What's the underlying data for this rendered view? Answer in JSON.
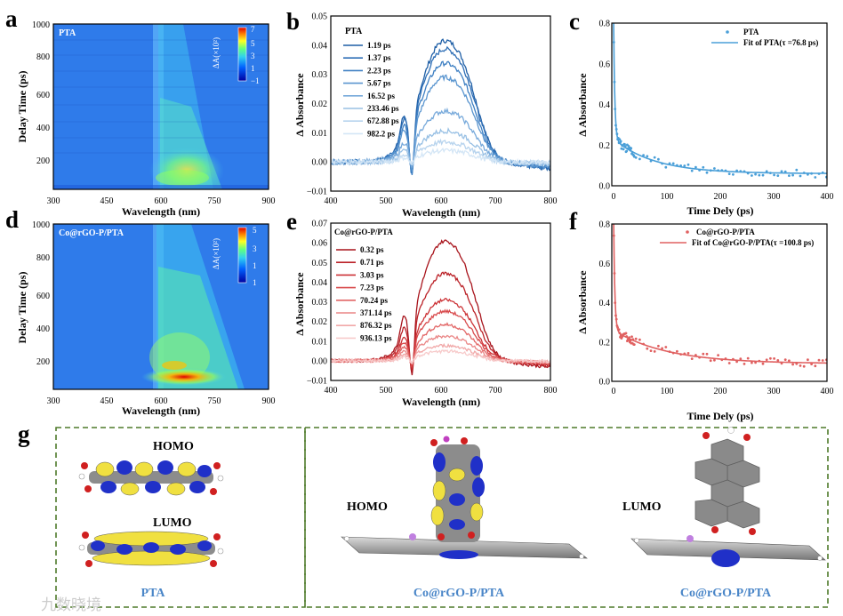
{
  "panel_letters": [
    "a",
    "b",
    "c",
    "d",
    "e",
    "f",
    "g"
  ],
  "colors": {
    "blue_dark": "#1f5fa6",
    "blue_fit": "#4a9fd8",
    "red_dark": "#b01a20",
    "red_fit": "#e06060",
    "dash_border": "#4e7a2a",
    "jet_bg": "#2a72e6"
  },
  "chart_data": [
    {
      "id": "a",
      "type": "heatmap",
      "label": "PTA",
      "xlabel": "Wavelength (nm)",
      "ylabel": "Delay Time (ps)",
      "xlim": [
        300,
        900
      ],
      "ylim": [
        0,
        1000
      ],
      "xticks": [
        "300",
        "450",
        "600",
        "750",
        "900"
      ],
      "yticks": [
        "200",
        "400",
        "600",
        "800",
        "1000"
      ],
      "yticks_num": [
        200,
        400,
        600,
        800,
        1000
      ],
      "colorbar_title": "ΔA(×10²)",
      "colorbar_ticks": [
        "7",
        "5",
        "3",
        "1",
        "−1"
      ]
    },
    {
      "id": "b",
      "type": "line",
      "label": "PTA",
      "xlabel": "Wavelength (nm)",
      "ylabel": "Δ Absorbance",
      "xlim": [
        400,
        800
      ],
      "ylim": [
        -0.01,
        0.05
      ],
      "xticks": [
        "400",
        "500",
        "600",
        "700",
        "800"
      ],
      "yticks": [
        "−0.01",
        "0.00",
        "0.01",
        "0.02",
        "0.03",
        "0.04",
        "0.05"
      ],
      "yticks_num": [
        -0.01,
        0,
        0.01,
        0.02,
        0.03,
        0.04,
        0.05
      ],
      "series_names": [
        "1.19 ps",
        "1.37 ps",
        "2.23 ps",
        "5.67 ps",
        "16.52 ps",
        "233.46 ps",
        "672.88 ps",
        "982.2 ps"
      ],
      "series_colors": [
        "#1f5fa6",
        "#2f6fb6",
        "#3f80c3",
        "#5a95cf",
        "#78aadb",
        "#98c0e4",
        "#b8d4ee",
        "#d4e6f6"
      ],
      "peaks": [
        0.043,
        0.04,
        0.035,
        0.03,
        0.018,
        0.011,
        0.007,
        0.004
      ]
    },
    {
      "id": "c",
      "type": "scatter",
      "label": "PTA",
      "fit_label": "Fit of  PTA(τ =76.8 ps)",
      "xlabel": "Time Dely (ps)",
      "ylabel": "Δ Absorbance",
      "xlim": [
        0,
        400
      ],
      "ylim": [
        0,
        0.8
      ],
      "xticks": [
        "0",
        "100",
        "200",
        "300",
        "400"
      ],
      "yticks": [
        "0.0",
        "0.2",
        "0.4",
        "0.6",
        "0.8"
      ],
      "yticks_num": [
        0,
        0.2,
        0.4,
        0.6,
        0.8
      ],
      "tau": 76.8,
      "plateau": 0.06
    },
    {
      "id": "d",
      "type": "heatmap",
      "label": "Co@rGO-P/PTA",
      "xlabel": "Wavelength (nm)",
      "ylabel": "Delay Time (ps)",
      "xlim": [
        300,
        900
      ],
      "ylim": [
        0,
        1000
      ],
      "xticks": [
        "300",
        "450",
        "600",
        "750",
        "900"
      ],
      "yticks": [
        "200",
        "400",
        "600",
        "800",
        "1000"
      ],
      "yticks_num": [
        200,
        400,
        600,
        800,
        1000
      ],
      "colorbar_title": "ΔA(×10²)",
      "colorbar_ticks": [
        "5",
        "3",
        "1",
        "1"
      ]
    },
    {
      "id": "e",
      "type": "line",
      "label": "Co@rGO-P/PTA",
      "xlabel": "Wavelength (nm)",
      "ylabel": "Δ Absorbance",
      "xlim": [
        400,
        800
      ],
      "ylim": [
        -0.01,
        0.07
      ],
      "xticks": [
        "400",
        "500",
        "600",
        "700",
        "800"
      ],
      "yticks": [
        "−0.01",
        "0.00",
        "0.01",
        "0.02",
        "0.03",
        "0.04",
        "0.05",
        "0.06",
        "0.07"
      ],
      "yticks_num": [
        -0.01,
        0,
        0.01,
        0.02,
        0.03,
        0.04,
        0.05,
        0.06,
        0.07
      ],
      "series_names": [
        "0.32 ps",
        "0.71 ps",
        "3.03 ps",
        "7.23 ps",
        "70.24 ps",
        "371.14 ps",
        "876.32 ps",
        "936.13 ps"
      ],
      "series_colors": [
        "#a8141c",
        "#bb2228",
        "#cc3236",
        "#d84a4c",
        "#e26666",
        "#ea8686",
        "#f1a8a8",
        "#f7caca"
      ],
      "peaks": [
        0.063,
        0.046,
        0.032,
        0.026,
        0.019,
        0.013,
        0.008,
        0.005
      ]
    },
    {
      "id": "f",
      "type": "scatter",
      "label": "Co@rGO-P/PTA",
      "fit_label": "Fit of  Co@rGO-P/PTA(τ =100.8 ps)",
      "xlabel": "Time Dely (ps)",
      "ylabel": "Δ Absorbance",
      "xlim": [
        0,
        400
      ],
      "ylim": [
        0,
        0.8
      ],
      "xticks": [
        "0",
        "100",
        "200",
        "300",
        "400"
      ],
      "yticks": [
        "0.0",
        "0.2",
        "0.4",
        "0.6",
        "0.8"
      ],
      "yticks_num": [
        0,
        0.2,
        0.4,
        0.6,
        0.8
      ],
      "tau": 100.8,
      "plateau": 0.09
    }
  ],
  "orbitals": {
    "pta_homo": "HOMO",
    "pta_lumo": "LUMO",
    "pta_caption": "PTA",
    "co_homo": "HOMO",
    "co_homo_caption": "Co@rGO-P/PTA",
    "co_lumo": "LUMO",
    "co_lumo_caption": "Co@rGO-P/PTA"
  },
  "watermark": "九数晓境"
}
